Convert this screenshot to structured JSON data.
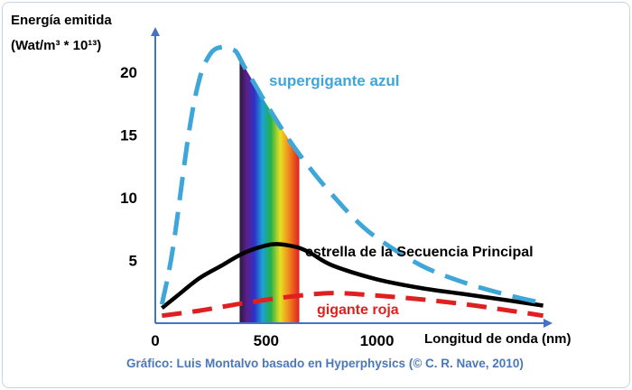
{
  "chart_data": {
    "type": "line",
    "ylabel_line1": "Energía emitida",
    "ylabel_line2": "(Wat/m³ * 10¹³)",
    "xlabel": "Longitud de onda (nm)",
    "credit": "Gráfico: Luis Montalvo basado en Hyperphysics (© C. R. Nave, 2010)",
    "x_ticks": [
      "0",
      "500",
      "1000"
    ],
    "y_ticks": [
      "5",
      "10",
      "15",
      "20"
    ],
    "xlim": [
      0,
      1800
    ],
    "ylim": [
      0,
      24
    ],
    "visible_band": [
      380,
      650
    ],
    "series": [
      {
        "name": "supergigante azul",
        "color": "#3ea6d8",
        "dash": true,
        "x": [
          30,
          80,
          150,
          200,
          250,
          300,
          350,
          370,
          400,
          450,
          500,
          600,
          700,
          800,
          900,
          1000,
          1200,
          1400,
          1600,
          1750
        ],
        "y": [
          1.5,
          6,
          15,
          19.5,
          21.5,
          22,
          21.8,
          21.5,
          20.5,
          19,
          17.5,
          14.7,
          12.3,
          10.2,
          8.3,
          6.8,
          4.6,
          3.2,
          2.2,
          1.6
        ]
      },
      {
        "name": "estrella de la Secuencia Principal",
        "color": "#000000",
        "dash": false,
        "x": [
          30,
          100,
          200,
          300,
          400,
          500,
          550,
          600,
          650,
          700,
          800,
          1000,
          1200,
          1400,
          1600,
          1750
        ],
        "y": [
          1.2,
          2.2,
          3.6,
          4.6,
          5.6,
          6.2,
          6.3,
          6.2,
          6.0,
          5.6,
          4.6,
          3.5,
          2.8,
          2.3,
          1.8,
          1.4
        ]
      },
      {
        "name": "gigante roja",
        "color": "#e02020",
        "dash": true,
        "x": [
          30,
          200,
          400,
          600,
          800,
          1000,
          1200,
          1400,
          1600,
          1750
        ],
        "y": [
          0.6,
          1.0,
          1.6,
          2.1,
          2.4,
          2.2,
          1.9,
          1.5,
          1.0,
          0.6
        ]
      }
    ]
  }
}
